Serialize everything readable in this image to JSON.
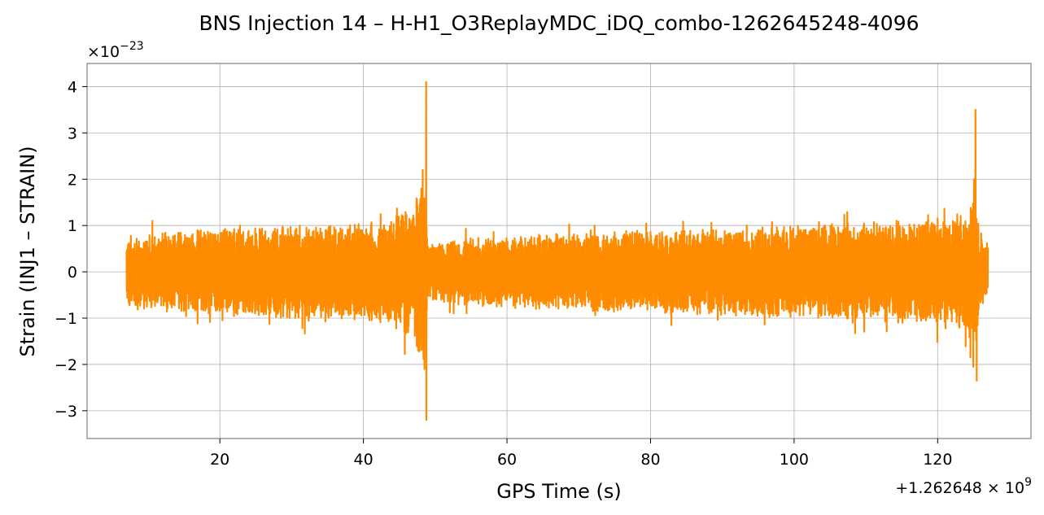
{
  "chart_data": {
    "type": "line",
    "title": "BNS Injection 14 – H-H1_O3ReplayMDC_iDQ_combo-1262645248-4096",
    "xlabel": "GPS Time (s)",
    "ylabel": "Strain (INJ1 – STRAIN)",
    "x_offset_label": "+1.262648 × 10",
    "x_offset_exponent": "9",
    "y_scale_label": "×10",
    "y_scale_exponent": "−23",
    "xlim": [
      1.5,
      133
    ],
    "ylim": [
      -3.6,
      4.5
    ],
    "x_ticks": [
      20,
      40,
      60,
      80,
      100,
      120
    ],
    "x_tick_labels": [
      "20",
      "40",
      "60",
      "80",
      "100",
      "120"
    ],
    "y_ticks": [
      -3,
      -2,
      -1,
      0,
      1,
      2,
      3,
      4
    ],
    "y_tick_labels": [
      "−3",
      "−2",
      "−1",
      "0",
      "1",
      "2",
      "3",
      "4"
    ],
    "grid": true,
    "line_color": "#ff8c00",
    "series": [
      {
        "name": "",
        "x_range": [
          7,
          127
        ],
        "envelope": [
          {
            "x": 7,
            "amp": 0.8
          },
          {
            "x": 20,
            "amp": 0.95
          },
          {
            "x": 40,
            "amp": 1.05
          },
          {
            "x": 44,
            "amp": 1.15
          },
          {
            "x": 47,
            "amp": 1.5
          },
          {
            "x": 48.5,
            "amp": 2.0
          },
          {
            "x": 49,
            "amp": 0.6
          },
          {
            "x": 55,
            "amp": 0.75
          },
          {
            "x": 80,
            "amp": 0.9
          },
          {
            "x": 100,
            "amp": 1.0
          },
          {
            "x": 118,
            "amp": 1.15
          },
          {
            "x": 124,
            "amp": 1.3
          },
          {
            "x": 125.3,
            "amp": 1.6
          },
          {
            "x": 126,
            "amp": 0.7
          },
          {
            "x": 127,
            "amp": 0.7
          }
        ],
        "peaks": [
          {
            "x": 48.7,
            "y": 4.1
          },
          {
            "x": 48.75,
            "y": -3.2
          },
          {
            "x": 48.5,
            "y": -2.1
          },
          {
            "x": 48.3,
            "y": 2.2
          },
          {
            "x": 125.3,
            "y": 3.5
          },
          {
            "x": 125.4,
            "y": -2.35
          },
          {
            "x": 125.0,
            "y": -2.05
          },
          {
            "x": 125.1,
            "y": 2.0
          }
        ]
      }
    ]
  }
}
